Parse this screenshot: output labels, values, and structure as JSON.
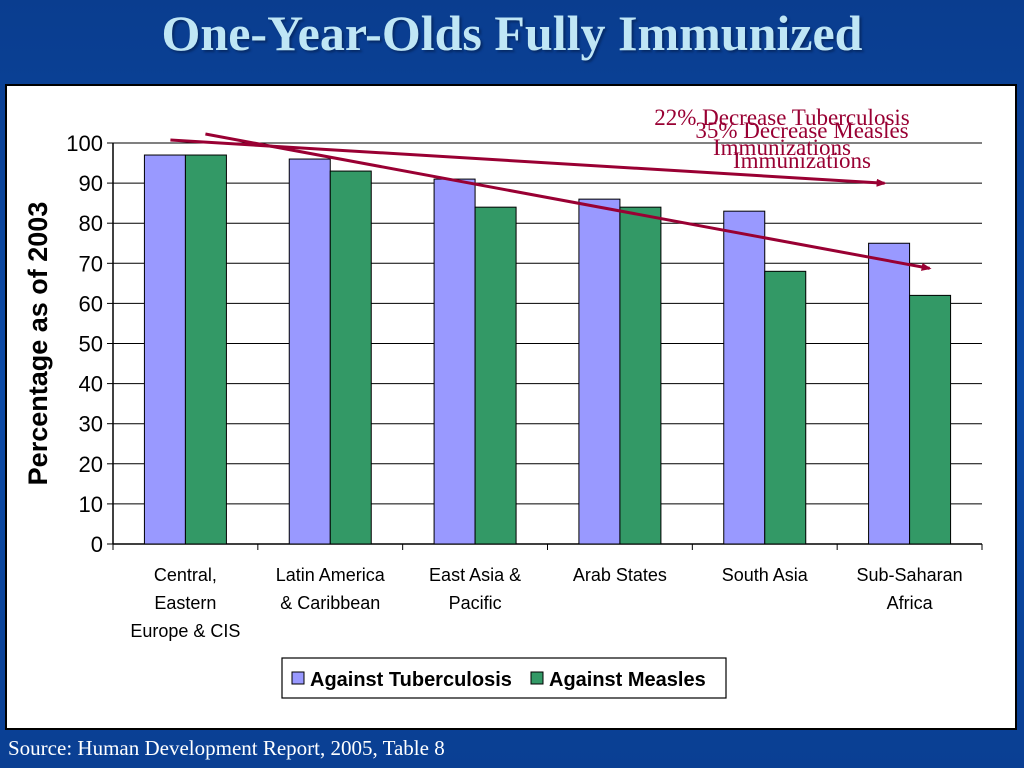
{
  "slide": {
    "title": "One-Year-Olds Fully Immunized",
    "source": "Source: Human Development Report, 2005, Table 8"
  },
  "colors": {
    "tuberculosis": "#9999ff",
    "measles": "#339966",
    "arrow": "#990033"
  },
  "chart_data": {
    "type": "bar",
    "title": "",
    "xlabel": "",
    "ylabel": "Percentage as of 2003",
    "ylim": [
      0,
      100
    ],
    "yticks": [
      0,
      10,
      20,
      30,
      40,
      50,
      60,
      70,
      80,
      90,
      100
    ],
    "grid": true,
    "legend": "bottom",
    "categories": [
      [
        "Central,",
        "Eastern",
        "Europe & CIS"
      ],
      [
        "Latin America",
        "& Caribbean"
      ],
      [
        "East Asia &",
        "Pacific"
      ],
      [
        "Arab States"
      ],
      [
        "South Asia"
      ],
      [
        "Sub-Saharan",
        "Africa"
      ]
    ],
    "series": [
      {
        "name": "Against Tuberculosis",
        "values": [
          97,
          96,
          91,
          86,
          83,
          75
        ]
      },
      {
        "name": "Against Measles",
        "values": [
          97,
          93,
          84,
          84,
          68,
          62
        ]
      }
    ],
    "annotations": [
      {
        "lines": [
          "22% Decrease Tuberculosis",
          "Immunizations"
        ]
      },
      {
        "lines": [
          "35% Decrease Measles",
          "Immunizations"
        ]
      }
    ]
  }
}
